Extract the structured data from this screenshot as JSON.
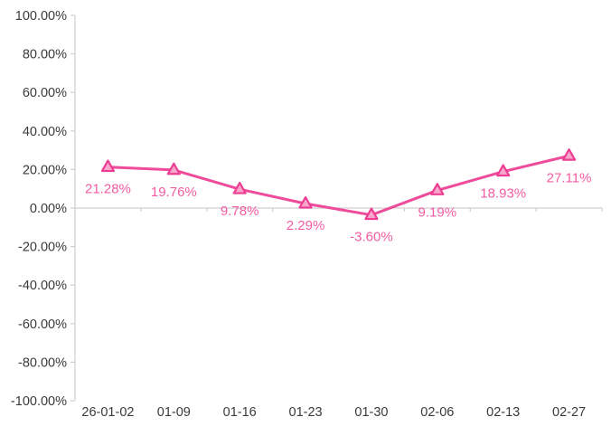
{
  "chart_data": {
    "type": "line",
    "title": "",
    "categories": [
      "26-01-02",
      "01-09",
      "01-16",
      "01-23",
      "01-30",
      "02-06",
      "02-13",
      "02-27"
    ],
    "series": [
      {
        "name": "series-1",
        "values": [
          21.28,
          19.76,
          9.78,
          2.29,
          -3.6,
          9.19,
          18.93,
          27.11
        ],
        "data_labels": [
          "21.28%",
          "19.76%",
          "9.78%",
          "2.29%",
          "-3.60%",
          "9.19%",
          "18.93%",
          "27.11%"
        ]
      }
    ],
    "xlabel": "",
    "ylabel": "",
    "ylim": [
      -100,
      100
    ],
    "y_tick_step": 20,
    "y_tick_labels": [
      "100.00%",
      "80.00%",
      "60.00%",
      "40.00%",
      "20.00%",
      "0.00%",
      "-20.00%",
      "-40.00%",
      "-60.00%",
      "-80.00%",
      "-100.00%"
    ],
    "grid": false,
    "legend": "none",
    "marker_shape": "triangle-up",
    "colors": {
      "line": "#EE4C9B",
      "marker_fill": "#F9A6CD",
      "marker_stroke": "#EC3E92",
      "data_label": "#F25CA4",
      "axis_line": "#D0CECE",
      "axis_text": "#3A3A3A",
      "background": "#FFFFFF"
    }
  }
}
